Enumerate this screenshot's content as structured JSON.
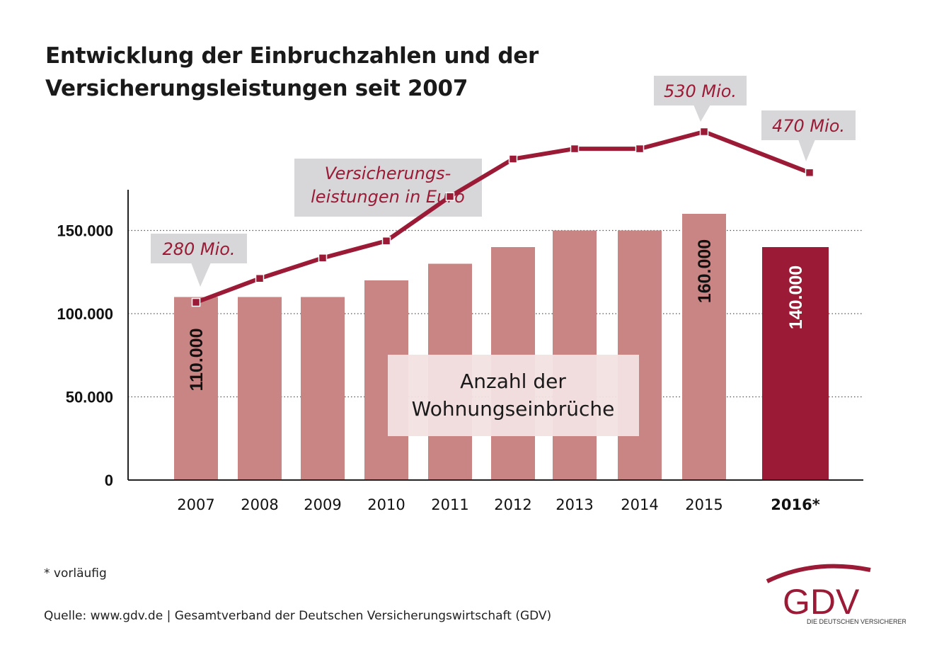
{
  "title": {
    "line1": "Entwicklung der Einbruchzahlen und der",
    "line2": "Versicherungsleistungen seit 2007"
  },
  "footnote": "* vorläufig",
  "source": "Quelle: www.gdv.de | Gesamtverband der Deutschen Versicherungswirtschaft (GDV)",
  "logo": {
    "text": "GDV",
    "subtext": "DIE DEUTSCHEN VERSICHERER"
  },
  "colors": {
    "bar": "#c98583",
    "bar_highlight": "#9b1b37",
    "line": "#9b1b37",
    "callout_bg": "#d7d7d9",
    "label_box_bg": "#f3e1e1"
  },
  "chart_data": {
    "type": "bar",
    "categories": [
      "2007",
      "2008",
      "2009",
      "2010",
      "2011",
      "2012",
      "2013",
      "2014",
      "2015",
      "2016*"
    ],
    "ylim": [
      0,
      175000
    ],
    "yticks": [
      0,
      50000,
      100000,
      150000
    ],
    "ytick_labels": [
      "0",
      "50.000",
      "100.000",
      "150.000"
    ],
    "grid": "dotted horizontal at y ticks",
    "bar_series": {
      "name": "Anzahl der Wohnungseinbrüche",
      "values": [
        110000,
        110000,
        110000,
        120000,
        130000,
        140000,
        150000,
        150000,
        160000,
        140000
      ],
      "highlight_index": 9
    },
    "bar_labels": [
      {
        "index": 0,
        "text": "110.000"
      },
      {
        "index": 8,
        "text": "160.000"
      },
      {
        "index": 9,
        "text": "140.000"
      }
    ],
    "line_series": {
      "name_line1": "Versicherungs-",
      "name_line2": "leistungen in Euro",
      "unit": "Mio. Euro",
      "values": [
        280,
        315,
        345,
        370,
        435,
        490,
        505,
        505,
        530,
        470
      ]
    },
    "line_callouts": [
      {
        "index": 0,
        "text": "280 Mio."
      },
      {
        "index": 8,
        "text": "530 Mio."
      },
      {
        "index": 9,
        "text": "470 Mio."
      }
    ]
  }
}
